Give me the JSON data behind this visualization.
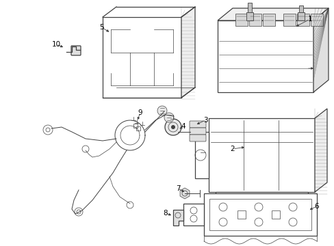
{
  "bg_color": "#ffffff",
  "line_color": "#404040",
  "label_color": "#000000",
  "fig_width": 4.89,
  "fig_height": 3.6,
  "dpi": 100
}
